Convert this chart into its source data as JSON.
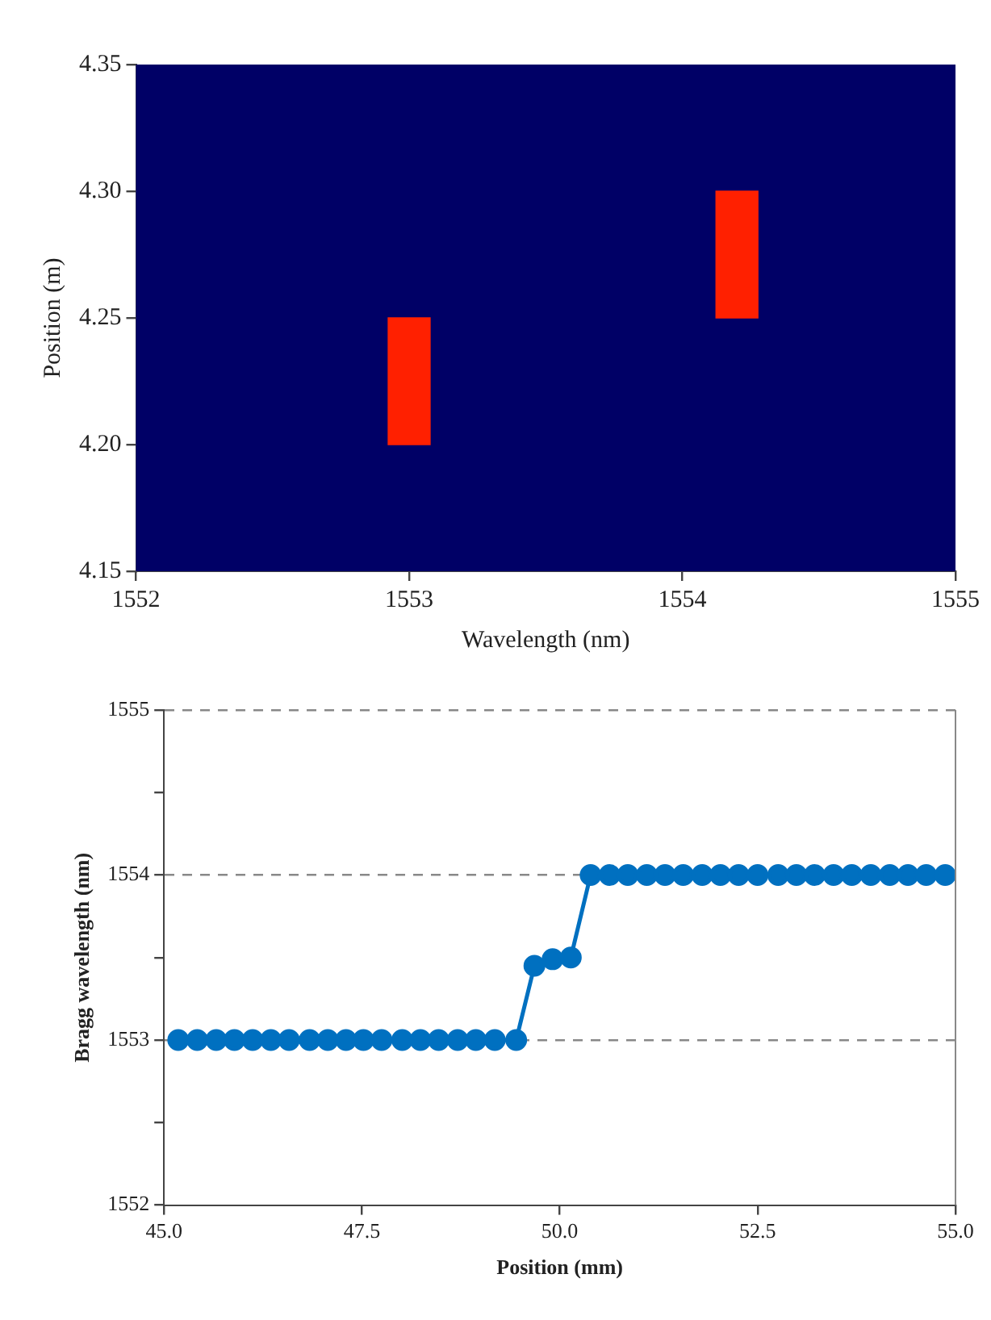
{
  "chart_data": [
    {
      "type": "bar",
      "xlabel": "Wavelength (nm)",
      "ylabel": "Position (m)",
      "x": [
        1553,
        1554.2
      ],
      "base": [
        4.2,
        4.25
      ],
      "values": [
        0.05,
        0.05
      ],
      "color": "#ff2000",
      "xlim": [
        1552,
        1555
      ],
      "xticks": [
        1552,
        1553,
        1554,
        1555
      ],
      "ylim": [
        4.15,
        4.35
      ],
      "yticks": [
        {
          "value": 4.15,
          "label": "4.15"
        },
        {
          "value": 4.2,
          "label": "4.20"
        },
        {
          "value": 4.25,
          "label": "4.25"
        },
        {
          "value": 4.3,
          "label": "4.30"
        },
        {
          "value": 4.35,
          "label": "4.35"
        }
      ],
      "grid": false
    },
    {
      "type": "line",
      "xlabel": "Position (mm)",
      "ylabel": "Bragg wavelength (nm)",
      "x": [
        45.18,
        45.42,
        45.66,
        45.89,
        46.12,
        46.35,
        46.58,
        46.84,
        47.07,
        47.3,
        47.52,
        47.75,
        48.01,
        48.24,
        48.47,
        48.71,
        48.94,
        49.18,
        49.45,
        49.68,
        49.91,
        50.14,
        50.39,
        50.63,
        50.86,
        51.1,
        51.33,
        51.56,
        51.8,
        52.03,
        52.26,
        52.5,
        52.76,
        52.99,
        53.22,
        53.46,
        53.69,
        53.93,
        54.17,
        54.4,
        54.63,
        54.87
      ],
      "values": [
        1553,
        1553,
        1553,
        1553,
        1553,
        1553,
        1553,
        1553,
        1553,
        1553,
        1553,
        1553,
        1553,
        1553,
        1553,
        1553,
        1553,
        1553,
        1553,
        1553.45,
        1553.49,
        1553.5,
        1554,
        1554,
        1554,
        1554,
        1554,
        1554,
        1554,
        1554,
        1554,
        1554,
        1554,
        1554,
        1554,
        1554,
        1554,
        1554,
        1554,
        1554,
        1554,
        1554
      ],
      "color": "#0070c0",
      "marker": "circle",
      "line_style": "solid",
      "xlim": [
        45,
        55
      ],
      "xticks": [
        {
          "value": 45,
          "label": "45.0"
        },
        {
          "value": 47.5,
          "label": "47.5"
        },
        {
          "value": 50,
          "label": "50.0"
        },
        {
          "value": 52.5,
          "label": "52.5"
        },
        {
          "value": 55,
          "label": "55.0"
        }
      ],
      "ylim": [
        1552,
        1555
      ],
      "yticks": [
        1552,
        {
          "value": 1552.5,
          "label": null
        },
        1553,
        {
          "value": 1553.5,
          "label": null
        },
        1554,
        {
          "value": 1554.5,
          "label": null
        },
        1555
      ],
      "grid": "y"
    }
  ]
}
